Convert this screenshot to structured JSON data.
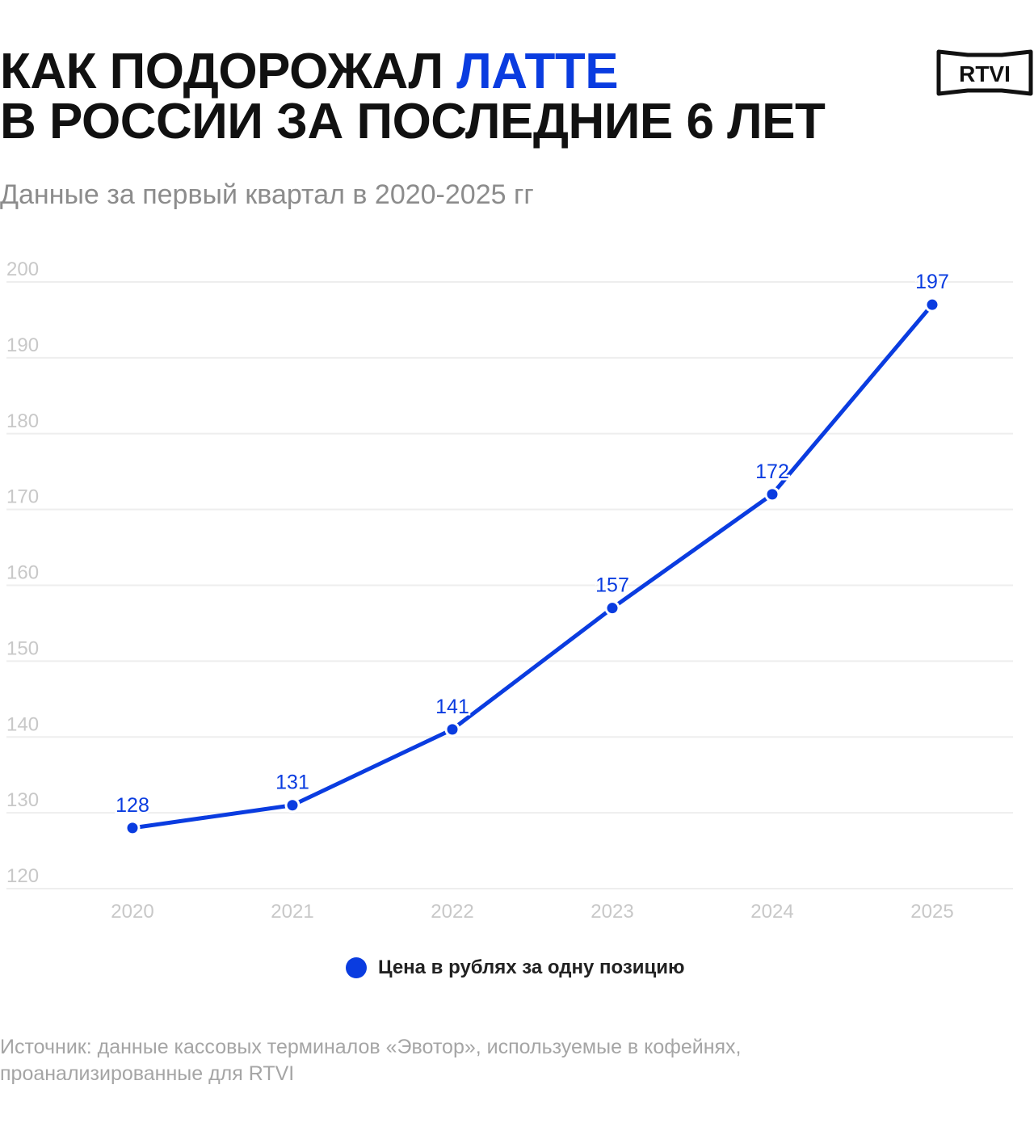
{
  "header": {
    "title_line1_prefix": "КАК ПОДОРОЖАЛ ",
    "title_line1_accent": "ЛАТТЕ",
    "title_line2": "В РОССИИ ЗА ПОСЛЕДНИЕ 6 ЛЕТ",
    "subtitle": "Данные за первый квартал в 2020-2025 гг"
  },
  "logo": {
    "text": "RTVI"
  },
  "colors": {
    "accent": "#0a3ce0",
    "grid": "#eeeeee",
    "tick_text": "#c8c8c8"
  },
  "chart_data": {
    "type": "line",
    "categories": [
      "2020",
      "2021",
      "2022",
      "2023",
      "2024",
      "2025"
    ],
    "series": [
      {
        "name": "Цена в рублях за одну позицию",
        "values": [
          128,
          131,
          141,
          157,
          172,
          197
        ]
      }
    ],
    "y_ticks": [
      200,
      190,
      180,
      170,
      160,
      150,
      140,
      130,
      120
    ],
    "ylim": [
      120,
      200
    ],
    "grid": true,
    "legend_position": "bottom-center",
    "data_labels": true
  },
  "legend": {
    "label": "Цена в рублях за одну позицию"
  },
  "footer": {
    "source_line1": "Источник: данные кассовых терминалов «Эвотор», используемые в кофейнях,",
    "source_line2": "проанализированные для RTVI"
  }
}
